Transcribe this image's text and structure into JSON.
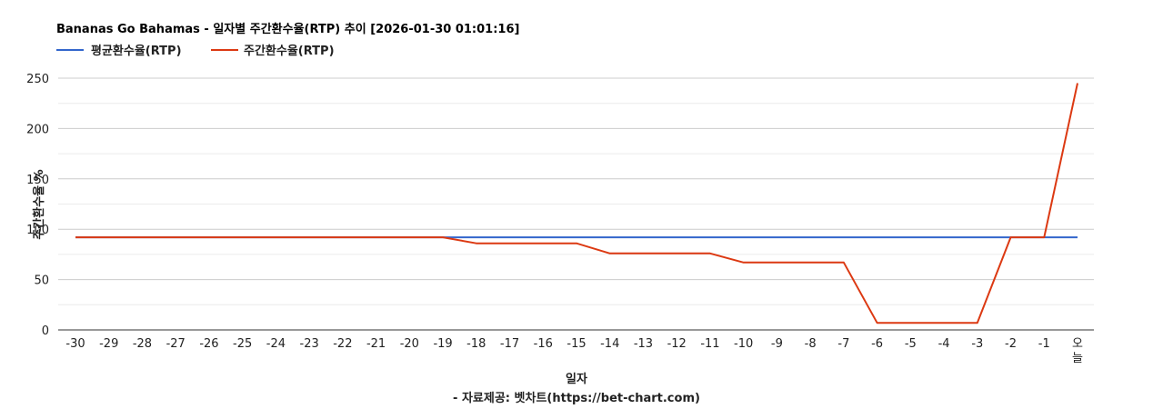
{
  "chart_data": {
    "type": "line",
    "title": "Bananas Go Bahamas - 일자별 주간환수율(RTP) 추이 [2026-01-30 01:01:16]",
    "xlabel": "일자",
    "source_note": "- 자료제공: 벳차트(https://bet-chart.com)",
    "ylabel": "주간환수율 %",
    "ylim": [
      0,
      250
    ],
    "yticks": [
      "0",
      "50",
      "100",
      "150",
      "200",
      "250"
    ],
    "grid": true,
    "legend_position": "top-left",
    "categories": [
      "-30",
      "-29",
      "-28",
      "-27",
      "-26",
      "-25",
      "-24",
      "-23",
      "-22",
      "-21",
      "-20",
      "-19",
      "-18",
      "-17",
      "-16",
      "-15",
      "-14",
      "-13",
      "-12",
      "-11",
      "-10",
      "-9",
      "-8",
      "-7",
      "-6",
      "-5",
      "-4",
      "-3",
      "-2",
      "-1",
      "오늘"
    ],
    "series": [
      {
        "name": "평균환수율(RTP)",
        "color": "#3366cc",
        "values": [
          92,
          92,
          92,
          92,
          92,
          92,
          92,
          92,
          92,
          92,
          92,
          92,
          92,
          92,
          92,
          92,
          92,
          92,
          92,
          92,
          92,
          92,
          92,
          92,
          92,
          92,
          92,
          92,
          92,
          92,
          92
        ]
      },
      {
        "name": "주간환수율(RTP)",
        "color": "#dc3912",
        "values": [
          92,
          92,
          92,
          92,
          92,
          92,
          92,
          92,
          92,
          92,
          92,
          92,
          86,
          86,
          86,
          86,
          76,
          76,
          76,
          76,
          67,
          67,
          67,
          67,
          7,
          7,
          7,
          7,
          92,
          92,
          245
        ]
      }
    ]
  }
}
